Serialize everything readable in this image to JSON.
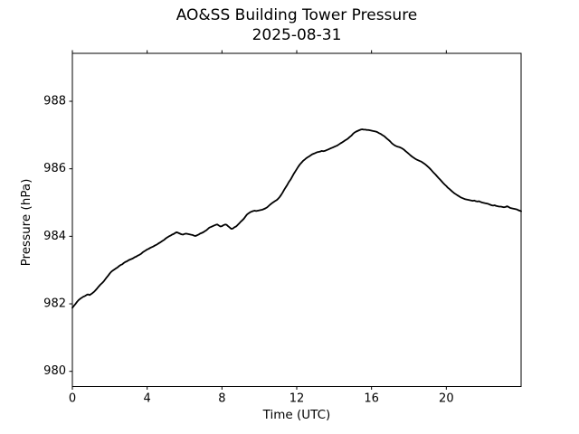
{
  "figure": {
    "title_line1": "AO&SS Building Tower Pressure",
    "title_line2": "2025-08-31",
    "background_color": "#ffffff",
    "axes_color": "#000000",
    "text_color": "#000000"
  },
  "chart_data": {
    "type": "line",
    "title": "AO&SS Building Tower Pressure",
    "subtitle": "2025-08-31",
    "xlabel": "Time (UTC)",
    "ylabel": "Pressure (hPa)",
    "xlim": [
      0,
      24
    ],
    "ylim": [
      979.55,
      989.42
    ],
    "x_ticks": [
      0,
      4,
      8,
      12,
      16,
      20
    ],
    "y_ticks": [
      980,
      982,
      984,
      986,
      988
    ],
    "grid": false,
    "legend": null,
    "line_color": "#000000",
    "line_width": 1.8,
    "series": [
      {
        "name": "pressure_hpa",
        "color": "#000000",
        "points": [
          [
            0,
            981.88
          ],
          [
            0.08,
            981.94
          ],
          [
            0.17,
            982.0
          ],
          [
            0.25,
            982.06
          ],
          [
            0.33,
            982.11
          ],
          [
            0.42,
            982.15
          ],
          [
            0.5,
            982.18
          ],
          [
            0.58,
            982.21
          ],
          [
            0.67,
            982.23
          ],
          [
            0.75,
            982.26
          ],
          [
            0.83,
            982.28
          ],
          [
            0.92,
            982.26
          ],
          [
            1.0,
            982.29
          ],
          [
            1.08,
            982.32
          ],
          [
            1.17,
            982.36
          ],
          [
            1.25,
            982.41
          ],
          [
            1.33,
            982.46
          ],
          [
            1.42,
            982.52
          ],
          [
            1.5,
            982.57
          ],
          [
            1.58,
            982.61
          ],
          [
            1.67,
            982.66
          ],
          [
            1.75,
            982.72
          ],
          [
            1.83,
            982.78
          ],
          [
            1.92,
            982.84
          ],
          [
            2.0,
            982.9
          ],
          [
            2.08,
            982.95
          ],
          [
            2.17,
            982.99
          ],
          [
            2.25,
            983.02
          ],
          [
            2.33,
            983.05
          ],
          [
            2.42,
            983.08
          ],
          [
            2.5,
            983.12
          ],
          [
            2.58,
            983.15
          ],
          [
            2.67,
            983.17
          ],
          [
            2.75,
            983.21
          ],
          [
            2.83,
            983.24
          ],
          [
            2.92,
            983.26
          ],
          [
            3.0,
            983.29
          ],
          [
            3.08,
            983.31
          ],
          [
            3.17,
            983.33
          ],
          [
            3.25,
            983.35
          ],
          [
            3.33,
            983.38
          ],
          [
            3.42,
            983.4
          ],
          [
            3.5,
            983.43
          ],
          [
            3.58,
            983.45
          ],
          [
            3.67,
            983.48
          ],
          [
            3.75,
            983.52
          ],
          [
            3.83,
            983.55
          ],
          [
            3.92,
            983.58
          ],
          [
            4.0,
            983.61
          ],
          [
            4.08,
            983.63
          ],
          [
            4.17,
            983.66
          ],
          [
            4.25,
            983.68
          ],
          [
            4.33,
            983.7
          ],
          [
            4.42,
            983.73
          ],
          [
            4.5,
            983.75
          ],
          [
            4.58,
            983.78
          ],
          [
            4.67,
            983.81
          ],
          [
            4.75,
            983.84
          ],
          [
            4.83,
            983.87
          ],
          [
            4.92,
            983.9
          ],
          [
            5.0,
            983.94
          ],
          [
            5.08,
            983.97
          ],
          [
            5.17,
            984.0
          ],
          [
            5.25,
            984.02
          ],
          [
            5.33,
            984.05
          ],
          [
            5.42,
            984.07
          ],
          [
            5.5,
            984.1
          ],
          [
            5.58,
            984.12
          ],
          [
            5.67,
            984.1
          ],
          [
            5.75,
            984.08
          ],
          [
            5.83,
            984.06
          ],
          [
            5.92,
            984.05
          ],
          [
            6.0,
            984.07
          ],
          [
            6.08,
            984.08
          ],
          [
            6.17,
            984.07
          ],
          [
            6.25,
            984.06
          ],
          [
            6.33,
            984.05
          ],
          [
            6.42,
            984.04
          ],
          [
            6.5,
            984.02
          ],
          [
            6.58,
            984.01
          ],
          [
            6.67,
            984.03
          ],
          [
            6.75,
            984.05
          ],
          [
            6.83,
            984.08
          ],
          [
            6.92,
            984.1
          ],
          [
            7.0,
            984.12
          ],
          [
            7.08,
            984.15
          ],
          [
            7.17,
            984.18
          ],
          [
            7.25,
            984.22
          ],
          [
            7.33,
            984.26
          ],
          [
            7.42,
            984.28
          ],
          [
            7.5,
            984.3
          ],
          [
            7.58,
            984.32
          ],
          [
            7.67,
            984.34
          ],
          [
            7.75,
            984.35
          ],
          [
            7.83,
            984.32
          ],
          [
            7.92,
            984.29
          ],
          [
            8.0,
            984.3
          ],
          [
            8.08,
            984.33
          ],
          [
            8.17,
            984.35
          ],
          [
            8.25,
            984.34
          ],
          [
            8.33,
            984.3
          ],
          [
            8.42,
            984.26
          ],
          [
            8.5,
            984.22
          ],
          [
            8.58,
            984.23
          ],
          [
            8.67,
            984.27
          ],
          [
            8.75,
            984.29
          ],
          [
            8.83,
            984.33
          ],
          [
            8.92,
            984.38
          ],
          [
            9.0,
            984.43
          ],
          [
            9.08,
            984.47
          ],
          [
            9.17,
            984.52
          ],
          [
            9.25,
            984.58
          ],
          [
            9.33,
            984.64
          ],
          [
            9.42,
            984.68
          ],
          [
            9.5,
            984.71
          ],
          [
            9.58,
            984.73
          ],
          [
            9.67,
            984.75
          ],
          [
            9.75,
            984.76
          ],
          [
            9.83,
            984.75
          ],
          [
            9.92,
            984.76
          ],
          [
            10.0,
            984.77
          ],
          [
            10.08,
            984.78
          ],
          [
            10.17,
            984.79
          ],
          [
            10.25,
            984.81
          ],
          [
            10.33,
            984.83
          ],
          [
            10.42,
            984.86
          ],
          [
            10.5,
            984.9
          ],
          [
            10.58,
            984.94
          ],
          [
            10.67,
            984.98
          ],
          [
            10.75,
            985.01
          ],
          [
            10.83,
            985.04
          ],
          [
            10.92,
            985.07
          ],
          [
            11.0,
            985.11
          ],
          [
            11.08,
            985.16
          ],
          [
            11.17,
            985.23
          ],
          [
            11.25,
            985.3
          ],
          [
            11.33,
            985.38
          ],
          [
            11.42,
            985.46
          ],
          [
            11.5,
            985.53
          ],
          [
            11.58,
            985.61
          ],
          [
            11.67,
            985.68
          ],
          [
            11.75,
            985.76
          ],
          [
            11.83,
            985.84
          ],
          [
            11.92,
            985.92
          ],
          [
            12.0,
            985.99
          ],
          [
            12.08,
            986.06
          ],
          [
            12.17,
            986.13
          ],
          [
            12.25,
            986.18
          ],
          [
            12.33,
            986.23
          ],
          [
            12.42,
            986.27
          ],
          [
            12.5,
            986.31
          ],
          [
            12.58,
            986.34
          ],
          [
            12.67,
            986.37
          ],
          [
            12.75,
            986.4
          ],
          [
            12.83,
            986.43
          ],
          [
            12.92,
            986.45
          ],
          [
            13.0,
            986.47
          ],
          [
            13.08,
            986.49
          ],
          [
            13.17,
            986.5
          ],
          [
            13.25,
            986.51
          ],
          [
            13.33,
            986.53
          ],
          [
            13.42,
            986.52
          ],
          [
            13.5,
            986.53
          ],
          [
            13.58,
            986.55
          ],
          [
            13.67,
            986.57
          ],
          [
            13.75,
            986.59
          ],
          [
            13.83,
            986.61
          ],
          [
            13.92,
            986.63
          ],
          [
            14.0,
            986.65
          ],
          [
            14.08,
            986.67
          ],
          [
            14.17,
            986.69
          ],
          [
            14.25,
            986.72
          ],
          [
            14.33,
            986.75
          ],
          [
            14.42,
            986.78
          ],
          [
            14.5,
            986.81
          ],
          [
            14.58,
            986.84
          ],
          [
            14.67,
            986.87
          ],
          [
            14.75,
            986.9
          ],
          [
            14.83,
            986.94
          ],
          [
            14.92,
            986.98
          ],
          [
            15.0,
            987.03
          ],
          [
            15.08,
            987.07
          ],
          [
            15.17,
            987.1
          ],
          [
            15.25,
            987.12
          ],
          [
            15.33,
            987.14
          ],
          [
            15.42,
            987.16
          ],
          [
            15.5,
            987.17
          ],
          [
            15.58,
            987.16
          ],
          [
            15.67,
            987.16
          ],
          [
            15.75,
            987.15
          ],
          [
            15.83,
            987.15
          ],
          [
            15.92,
            987.14
          ],
          [
            16.0,
            987.13
          ],
          [
            16.08,
            987.12
          ],
          [
            16.17,
            987.11
          ],
          [
            16.25,
            987.1
          ],
          [
            16.33,
            987.08
          ],
          [
            16.42,
            987.05
          ],
          [
            16.5,
            987.03
          ],
          [
            16.58,
            987.0
          ],
          [
            16.67,
            986.97
          ],
          [
            16.75,
            986.93
          ],
          [
            16.83,
            986.89
          ],
          [
            16.92,
            986.85
          ],
          [
            17.0,
            986.81
          ],
          [
            17.08,
            986.76
          ],
          [
            17.17,
            986.72
          ],
          [
            17.25,
            986.69
          ],
          [
            17.33,
            986.67
          ],
          [
            17.42,
            986.65
          ],
          [
            17.5,
            986.64
          ],
          [
            17.58,
            986.62
          ],
          [
            17.67,
            986.59
          ],
          [
            17.75,
            986.56
          ],
          [
            17.83,
            986.52
          ],
          [
            17.92,
            986.48
          ],
          [
            18.0,
            986.44
          ],
          [
            18.08,
            986.4
          ],
          [
            18.17,
            986.36
          ],
          [
            18.25,
            986.33
          ],
          [
            18.33,
            986.3
          ],
          [
            18.42,
            986.27
          ],
          [
            18.5,
            986.25
          ],
          [
            18.58,
            986.23
          ],
          [
            18.67,
            986.21
          ],
          [
            18.75,
            986.18
          ],
          [
            18.83,
            986.15
          ],
          [
            18.92,
            986.11
          ],
          [
            19.0,
            986.07
          ],
          [
            19.08,
            986.03
          ],
          [
            19.17,
            985.98
          ],
          [
            19.25,
            985.93
          ],
          [
            19.33,
            985.88
          ],
          [
            19.42,
            985.83
          ],
          [
            19.5,
            985.78
          ],
          [
            19.58,
            985.73
          ],
          [
            19.67,
            985.68
          ],
          [
            19.75,
            985.63
          ],
          [
            19.83,
            985.58
          ],
          [
            19.92,
            985.53
          ],
          [
            20.0,
            985.49
          ],
          [
            20.08,
            985.44
          ],
          [
            20.17,
            985.4
          ],
          [
            20.25,
            985.36
          ],
          [
            20.33,
            985.32
          ],
          [
            20.42,
            985.28
          ],
          [
            20.5,
            985.25
          ],
          [
            20.58,
            985.22
          ],
          [
            20.67,
            985.19
          ],
          [
            20.75,
            985.16
          ],
          [
            20.83,
            985.14
          ],
          [
            20.92,
            985.12
          ],
          [
            21.0,
            985.1
          ],
          [
            21.08,
            985.09
          ],
          [
            21.17,
            985.08
          ],
          [
            21.25,
            985.07
          ],
          [
            21.33,
            985.06
          ],
          [
            21.42,
            985.05
          ],
          [
            21.5,
            985.06
          ],
          [
            21.58,
            985.04
          ],
          [
            21.67,
            985.03
          ],
          [
            21.75,
            985.04
          ],
          [
            21.83,
            985.02
          ],
          [
            21.92,
            985.0
          ],
          [
            22.0,
            984.99
          ],
          [
            22.08,
            984.98
          ],
          [
            22.17,
            984.97
          ],
          [
            22.25,
            984.96
          ],
          [
            22.33,
            984.94
          ],
          [
            22.42,
            984.92
          ],
          [
            22.5,
            984.91
          ],
          [
            22.58,
            984.92
          ],
          [
            22.67,
            984.9
          ],
          [
            22.75,
            984.89
          ],
          [
            22.83,
            984.88
          ],
          [
            22.92,
            984.88
          ],
          [
            23.0,
            984.87
          ],
          [
            23.08,
            984.86
          ],
          [
            23.17,
            984.87
          ],
          [
            23.25,
            984.89
          ],
          [
            23.33,
            984.87
          ],
          [
            23.42,
            984.84
          ],
          [
            23.5,
            984.83
          ],
          [
            23.58,
            984.82
          ],
          [
            23.67,
            984.81
          ],
          [
            23.75,
            984.8
          ],
          [
            23.83,
            984.78
          ],
          [
            23.92,
            984.76
          ],
          [
            24.0,
            984.74
          ]
        ]
      }
    ]
  }
}
